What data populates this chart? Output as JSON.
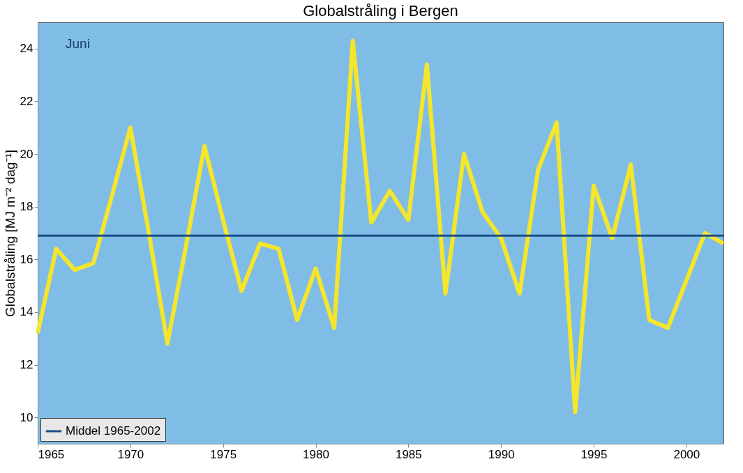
{
  "chart_data": {
    "type": "line",
    "title": "Globalstråling i Bergen",
    "ylabel": "Globalstråling [MJ m⁻² dag⁻¹]",
    "annotations": [
      "Juni"
    ],
    "x": [
      1965,
      1966,
      1967,
      1968,
      1969,
      1970,
      1971,
      1972,
      1973,
      1974,
      1975,
      1976,
      1977,
      1978,
      1979,
      1980,
      1981,
      1982,
      1983,
      1984,
      1985,
      1986,
      1987,
      1988,
      1989,
      1990,
      1991,
      1992,
      1993,
      1994,
      1995,
      1996,
      1997,
      1998,
      1999,
      2000,
      2001,
      2002
    ],
    "series": [
      {
        "color": "#f5e62c",
        "values": [
          13.2,
          16.4,
          15.6,
          15.85,
          18.4,
          21.0,
          17.0,
          12.8,
          16.5,
          20.3,
          17.5,
          14.8,
          16.6,
          16.4,
          13.7,
          15.65,
          13.4,
          24.3,
          17.4,
          18.6,
          17.5,
          23.4,
          14.7,
          20.0,
          17.8,
          16.8,
          14.7,
          19.4,
          21.2,
          10.2,
          18.8,
          16.8,
          19.6,
          13.7,
          13.4,
          15.2,
          17.0,
          16.6
        ]
      }
    ],
    "ref_lines": [
      {
        "axis": "y",
        "value": 16.9,
        "label": "Middel 1965-2002",
        "color": "#1d4f86"
      }
    ],
    "xlim": [
      1965,
      2002
    ],
    "xticks": [
      1965,
      1970,
      1975,
      1980,
      1985,
      1990,
      1995,
      2000
    ],
    "ylim": [
      9,
      25
    ],
    "yticks": [
      10,
      12,
      14,
      16,
      18,
      20,
      22,
      24
    ],
    "grid": false,
    "legend": "bottom left",
    "line_style": "solid",
    "marker": "none"
  }
}
